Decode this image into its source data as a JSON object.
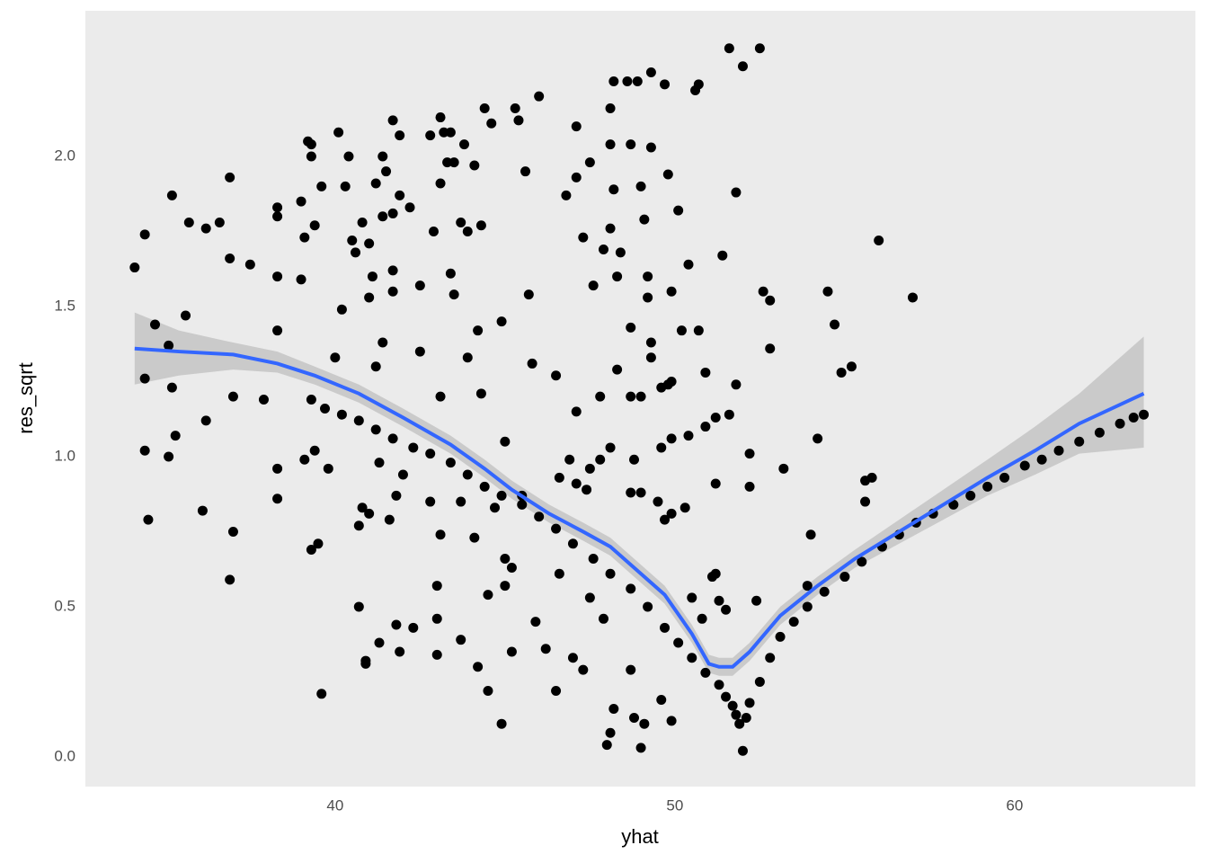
{
  "chart_data": {
    "type": "scatter",
    "x_label": "yhat",
    "y_label": "res_sqrt",
    "xlim": [
      32.65,
      65.32
    ],
    "ylim": [
      -0.099,
      2.485
    ],
    "xticks": [
      40,
      50,
      60
    ],
    "yticks": [
      {
        "value": 0,
        "label": "0.0"
      },
      0.5,
      {
        "value": 1,
        "label": "1.0"
      },
      1.5,
      {
        "value": 2,
        "label": "2.0"
      }
    ],
    "x_minor_ticks": [
      35,
      45,
      55,
      65
    ],
    "y_minor_ticks": [
      0.25,
      0.75,
      1.25,
      1.75,
      2.25
    ],
    "grid": true,
    "series": [
      {
        "color": "#000000",
        "x": [
          34.1,
          34.4,
          34.4,
          34.4,
          34.5,
          34.7,
          35.1,
          35.2,
          35.2,
          35.3,
          35.1,
          35.6,
          35.7,
          36.1,
          36.2,
          36.2,
          36.6,
          36.9,
          36.9,
          36.9,
          37.0,
          37.0,
          37.5,
          37.9,
          38.3,
          38.3,
          38.3,
          38.3,
          38.3,
          38.3,
          39.0,
          39.0,
          39.2,
          39.3,
          39.3,
          39.1,
          39.4,
          39.4,
          39.3,
          39.5,
          39.6,
          39.6,
          39.1,
          39.8,
          40.0,
          40.1,
          40.2,
          40.3,
          40.4,
          40.5,
          40.6,
          40.7,
          40.7,
          40.8,
          40.9,
          40.9,
          40.8,
          41.0,
          41.0,
          41.0,
          41.1,
          41.2,
          41.3,
          41.2,
          41.3,
          41.4,
          41.4,
          41.4,
          41.5,
          41.6,
          41.7,
          41.7,
          41.7,
          41.7,
          41.8,
          41.8,
          41.9,
          41.9,
          41.9,
          42.0,
          42.2,
          42.3,
          42.5,
          42.5,
          42.8,
          42.8,
          42.9,
          43.0,
          43.0,
          43.0,
          43.1,
          43.1,
          43.1,
          43.1,
          43.2,
          43.3,
          43.4,
          43.4,
          43.5,
          43.5,
          43.7,
          43.7,
          43.7,
          43.8,
          43.9,
          43.9,
          44.1,
          44.2,
          44.1,
          44.2,
          44.3,
          44.3,
          44.4,
          44.5,
          44.5,
          44.6,
          44.7,
          44.9,
          44.9,
          45.0,
          45.0,
          45.0,
          45.2,
          45.2,
          45.3,
          45.4,
          45.5,
          45.6,
          45.7,
          45.8,
          45.9,
          46.0,
          46.2,
          46.5,
          46.5,
          46.6,
          46.8,
          46.9,
          47.0,
          47.1,
          47.1,
          47.1,
          47.3,
          47.3,
          47.5,
          47.5,
          47.6,
          47.8,
          47.9,
          47.9,
          48.0,
          48.1,
          48.1,
          48.1,
          48.1,
          48.2,
          48.2,
          48.2,
          48.3,
          48.4,
          48.6,
          48.7,
          48.7,
          48.8,
          48.9,
          49.0,
          49.0,
          49.1,
          49.1,
          49.2,
          49.2,
          49.3,
          49.3,
          49.6,
          49.7,
          49.8,
          49.9,
          49.9,
          50.1,
          50.2,
          50.4,
          50.6,
          50.7,
          50.7,
          50.9,
          51.2,
          51.4,
          51.6,
          51.8,
          51.8,
          52.0,
          52.2,
          52.2,
          52.5,
          52.6,
          52.8,
          52.8,
          53.2,
          54.0,
          54.2,
          54.5,
          54.7,
          54.9,
          55.2,
          55.6,
          55.6,
          55.8,
          56.0,
          57.0,
          48.7,
          49.0,
          49.6,
          49.8,
          49.9,
          48.8,
          49.6,
          49.9,
          50.4,
          50.9,
          51.2,
          51.6,
          47.5,
          47.8,
          48.1,
          48.7,
          49.0,
          49.5,
          49.9,
          50.3,
          49.7,
          49.3,
          49.3,
          48.7,
          48.3,
          47.1,
          47.4,
          46.6,
          51.1,
          51.2,
          51.3,
          50.5,
          50.8,
          51.5,
          52.4,
          53.9,
          39.3,
          39.7,
          40.2,
          40.7,
          41.2,
          41.7,
          42.3,
          42.8,
          43.4,
          43.9,
          44.4,
          44.9,
          45.5,
          46.0,
          46.5,
          47.0,
          47.6,
          48.1,
          48.7,
          49.2,
          49.7,
          50.1,
          50.5,
          50.9,
          51.3,
          51.5,
          51.7,
          51.8,
          51.9,
          52.0,
          52.1,
          52.2,
          52.5,
          52.8,
          53.1,
          53.5,
          53.9,
          54.4,
          55.0,
          55.5,
          56.1,
          56.6,
          57.1,
          57.6,
          58.2,
          58.7,
          59.2,
          59.7,
          60.3,
          60.8,
          61.3,
          61.9,
          62.5,
          63.1,
          63.5,
          63.8
        ],
        "values": [
          1.63,
          1.74,
          1.26,
          1.02,
          0.79,
          1.44,
          1.37,
          1.87,
          1.23,
          1.07,
          1.0,
          1.47,
          1.78,
          0.82,
          1.76,
          1.12,
          1.78,
          0.59,
          1.93,
          1.66,
          1.2,
          0.75,
          1.64,
          1.19,
          1.83,
          1.8,
          1.6,
          1.42,
          0.96,
          0.86,
          1.85,
          1.59,
          2.05,
          2.04,
          2.0,
          1.73,
          1.77,
          1.02,
          0.69,
          0.71,
          0.21,
          1.9,
          0.99,
          0.96,
          1.33,
          2.08,
          1.49,
          1.9,
          2.0,
          1.72,
          1.68,
          0.77,
          0.5,
          1.78,
          0.31,
          0.32,
          0.83,
          0.81,
          1.53,
          1.71,
          1.6,
          1.91,
          0.38,
          1.3,
          0.98,
          1.8,
          1.38,
          2.0,
          1.95,
          0.79,
          2.12,
          1.55,
          1.62,
          1.81,
          0.87,
          0.44,
          1.87,
          2.07,
          0.35,
          0.94,
          1.83,
          0.43,
          1.35,
          1.57,
          0.85,
          2.07,
          1.75,
          0.57,
          0.46,
          0.34,
          0.74,
          2.13,
          1.91,
          1.2,
          2.08,
          1.98,
          2.08,
          1.61,
          1.98,
          1.54,
          0.39,
          0.85,
          1.78,
          2.04,
          1.75,
          1.33,
          0.73,
          1.42,
          1.97,
          0.3,
          1.21,
          1.77,
          2.16,
          0.22,
          0.54,
          2.11,
          0.83,
          0.11,
          1.45,
          0.66,
          0.57,
          1.05,
          0.35,
          0.63,
          2.16,
          2.12,
          0.87,
          1.95,
          1.54,
          1.31,
          0.45,
          2.2,
          0.36,
          0.22,
          1.27,
          0.61,
          1.87,
          0.99,
          0.33,
          2.1,
          1.93,
          1.15,
          0.29,
          1.73,
          1.98,
          0.53,
          1.57,
          1.2,
          1.69,
          0.46,
          0.04,
          1.76,
          0.08,
          2.04,
          2.16,
          2.25,
          0.16,
          1.89,
          1.6,
          1.68,
          2.25,
          2.04,
          0.29,
          0.13,
          2.25,
          0.03,
          1.9,
          1.79,
          0.11,
          1.53,
          1.6,
          2.28,
          2.03,
          0.19,
          2.24,
          1.94,
          1.55,
          0.12,
          1.82,
          1.42,
          1.64,
          2.22,
          2.24,
          1.42,
          1.28,
          0.91,
          1.67,
          2.36,
          1.88,
          1.24,
          2.3,
          1.01,
          0.9,
          2.36,
          1.55,
          1.52,
          1.36,
          0.96,
          0.74,
          1.06,
          1.55,
          1.44,
          1.28,
          1.3,
          0.85,
          0.92,
          0.93,
          1.72,
          1.53,
          1.2,
          1.2,
          1.23,
          1.24,
          1.25,
          0.99,
          1.03,
          1.06,
          1.07,
          1.1,
          1.13,
          1.14,
          0.96,
          0.99,
          1.03,
          0.88,
          0.88,
          0.85,
          0.81,
          0.83,
          0.79,
          1.38,
          1.33,
          1.43,
          1.29,
          0.91,
          0.89,
          0.93,
          0.6,
          0.61,
          0.52,
          0.53,
          0.46,
          0.49,
          0.52,
          0.57,
          1.19,
          1.16,
          1.14,
          1.12,
          1.09,
          1.06,
          1.03,
          1.01,
          0.98,
          0.94,
          0.9,
          0.87,
          0.84,
          0.8,
          0.76,
          0.71,
          0.66,
          0.61,
          0.56,
          0.5,
          0.43,
          0.38,
          0.33,
          0.28,
          0.24,
          0.2,
          0.17,
          0.14,
          0.11,
          0.02,
          0.13,
          0.18,
          0.25,
          0.33,
          0.4,
          0.45,
          0.5,
          0.55,
          0.6,
          0.65,
          0.7,
          0.74,
          0.78,
          0.81,
          0.84,
          0.87,
          0.9,
          0.93,
          0.97,
          0.99,
          1.02,
          1.05,
          1.08,
          1.11,
          1.13,
          1.14
        ]
      }
    ],
    "smooth": {
      "color": "#3366FF",
      "band_color": "#999999",
      "x": [
        34.1,
        35.4,
        37.0,
        38.3,
        39.4,
        40.7,
        42.0,
        43.4,
        44.4,
        45.2,
        46.3,
        47.3,
        48.1,
        48.9,
        49.7,
        50.5,
        51.0,
        51.3,
        51.7,
        52.2,
        53.1,
        54.2,
        55.3,
        56.6,
        57.9,
        59.2,
        60.6,
        61.9,
        63.8
      ],
      "values": [
        1.36,
        1.35,
        1.34,
        1.31,
        1.27,
        1.21,
        1.13,
        1.04,
        0.96,
        0.89,
        0.81,
        0.75,
        0.7,
        0.62,
        0.54,
        0.41,
        0.31,
        0.3,
        0.3,
        0.35,
        0.47,
        0.57,
        0.66,
        0.75,
        0.84,
        0.93,
        1.02,
        1.11,
        1.21
      ],
      "lower": [
        1.24,
        1.27,
        1.29,
        1.28,
        1.24,
        1.18,
        1.1,
        1.01,
        0.93,
        0.86,
        0.78,
        0.72,
        0.67,
        0.59,
        0.51,
        0.38,
        0.28,
        0.27,
        0.27,
        0.32,
        0.44,
        0.54,
        0.63,
        0.71,
        0.79,
        0.87,
        0.94,
        1.01,
        1.03
      ],
      "upper": [
        1.48,
        1.42,
        1.38,
        1.35,
        1.3,
        1.24,
        1.16,
        1.07,
        0.99,
        0.92,
        0.84,
        0.78,
        0.73,
        0.65,
        0.57,
        0.44,
        0.34,
        0.33,
        0.33,
        0.38,
        0.5,
        0.6,
        0.69,
        0.79,
        0.89,
        0.99,
        1.1,
        1.21,
        1.4
      ]
    }
  }
}
